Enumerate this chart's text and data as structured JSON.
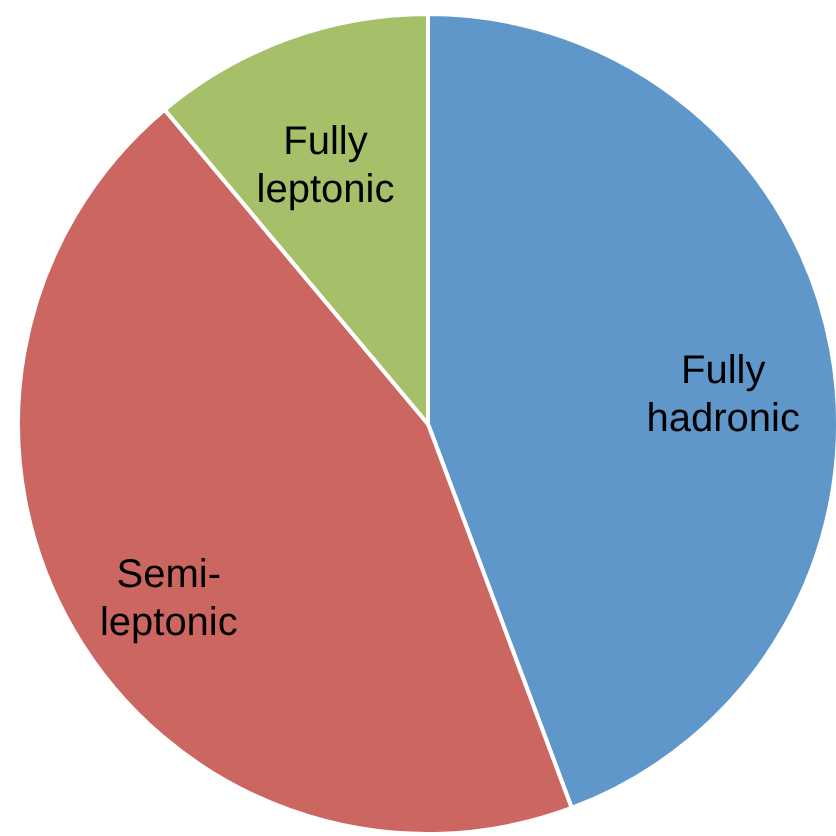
{
  "chart_data": {
    "type": "pie",
    "categories": [
      "Fully hadronic",
      "Semi-leptonic",
      "Fully leptonic"
    ],
    "values": [
      44.3,
      44.6,
      11.1
    ],
    "colors": [
      "#6097cb",
      "#cc6660",
      "#a6c06a"
    ]
  }
}
